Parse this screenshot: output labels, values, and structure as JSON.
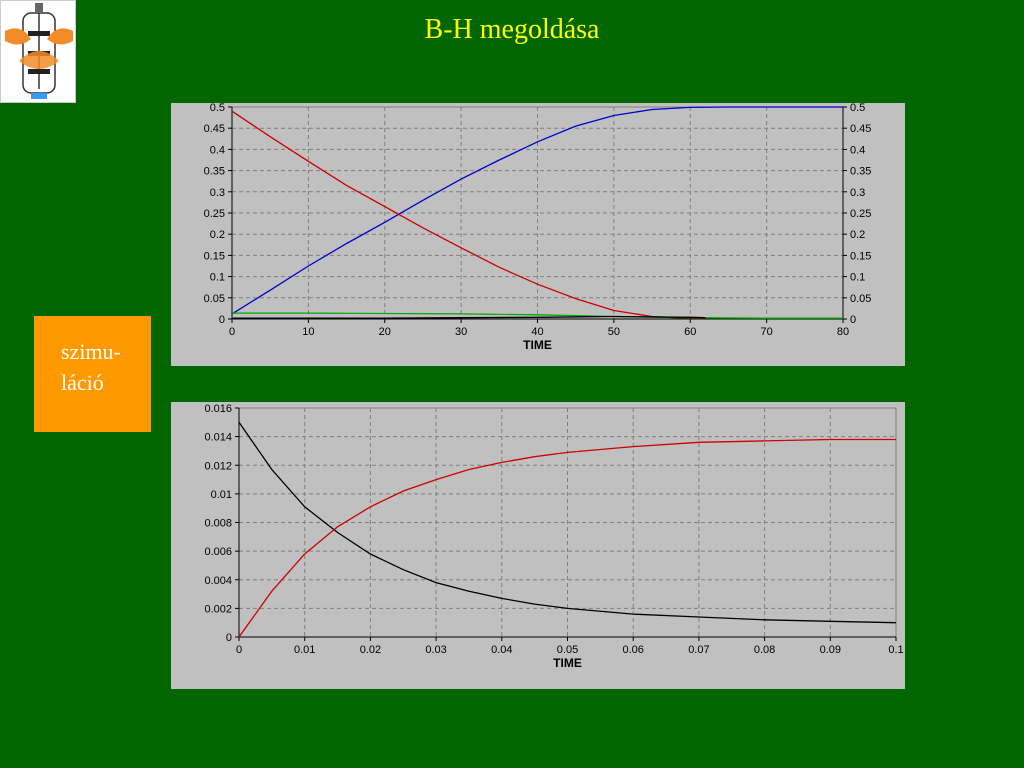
{
  "slide": {
    "title": "B-H megoldása",
    "side_box": {
      "line1": "szimu-",
      "line2": "láció"
    },
    "logo_icon": "bioreactor-icon"
  },
  "colors": {
    "background": "#006600",
    "title": "#ffff00",
    "side_box": "#ff9900",
    "chart_bg": "#c0c0c0"
  },
  "chart_data": [
    {
      "type": "line",
      "title": "",
      "xlabel": "TIME",
      "ylabel": "",
      "xlim": [
        0,
        80
      ],
      "ylim": [
        0,
        0.5
      ],
      "x_ticks": [
        "0",
        "10",
        "20",
        "30",
        "40",
        "50",
        "60",
        "70",
        "80"
      ],
      "y_ticks": [
        "0",
        "0.05",
        "0.1",
        "0.15",
        "0.2",
        "0.25",
        "0.3",
        "0.35",
        "0.4",
        "0.45",
        "0.5"
      ],
      "y_ticks_right": [
        "0",
        "0.05",
        "0.1",
        "0.15",
        "0.2",
        "0.25",
        "0.3",
        "0.35",
        "0.4",
        "0.45",
        "0.5"
      ],
      "grid": true,
      "series": [
        {
          "color": "#0000cc",
          "x": [
            0,
            5,
            10,
            15,
            20,
            25,
            30,
            35,
            40,
            45,
            50,
            55,
            60,
            65,
            70,
            75,
            80
          ],
          "y": [
            0.012,
            0.068,
            0.125,
            0.178,
            0.228,
            0.28,
            0.33,
            0.375,
            0.418,
            0.455,
            0.48,
            0.494,
            0.499,
            0.5,
            0.5,
            0.5,
            0.5
          ]
        },
        {
          "color": "#cc0000",
          "x": [
            0,
            5,
            10,
            15,
            20,
            25,
            30,
            35,
            40,
            45,
            50,
            55,
            58,
            62
          ],
          "y": [
            0.49,
            0.43,
            0.372,
            0.315,
            0.265,
            0.215,
            0.168,
            0.122,
            0.082,
            0.048,
            0.02,
            0.006,
            0.003,
            0.002
          ]
        },
        {
          "color": "#00aa00",
          "x": [
            0,
            10,
            20,
            30,
            40,
            50,
            60,
            70,
            80
          ],
          "y": [
            0.014,
            0.014,
            0.013,
            0.012,
            0.01,
            0.006,
            0.003,
            0.002,
            0.002
          ]
        },
        {
          "color": "#000000",
          "x": [
            0,
            10,
            20,
            30,
            40,
            50,
            60,
            62
          ],
          "y": [
            0.002,
            0.002,
            0.002,
            0.003,
            0.004,
            0.006,
            0.004,
            0.003
          ]
        }
      ]
    },
    {
      "type": "line",
      "title": "",
      "xlabel": "TIME",
      "ylabel": "",
      "xlim": [
        0,
        0.1
      ],
      "ylim": [
        0,
        0.016
      ],
      "x_ticks": [
        "0",
        "0.01",
        "0.02",
        "0.03",
        "0.04",
        "0.05",
        "0.06",
        "0.07",
        "0.08",
        "0.09",
        "0.1"
      ],
      "y_ticks": [
        "0",
        "0.002",
        "0.004",
        "0.006",
        "0.008",
        "0.01",
        "0.012",
        "0.014",
        "0.016"
      ],
      "grid": true,
      "series": [
        {
          "color": "#000000",
          "x": [
            0,
            0.005,
            0.01,
            0.015,
            0.02,
            0.025,
            0.03,
            0.035,
            0.04,
            0.045,
            0.05,
            0.06,
            0.07,
            0.08,
            0.09,
            0.1
          ],
          "y": [
            0.015,
            0.0117,
            0.0091,
            0.0073,
            0.0058,
            0.0047,
            0.0038,
            0.0032,
            0.0027,
            0.0023,
            0.002,
            0.0016,
            0.0014,
            0.0012,
            0.0011,
            0.001
          ]
        },
        {
          "color": "#cc0000",
          "x": [
            0,
            0.005,
            0.01,
            0.015,
            0.02,
            0.025,
            0.03,
            0.035,
            0.04,
            0.045,
            0.05,
            0.06,
            0.07,
            0.08,
            0.09,
            0.1
          ],
          "y": [
            0,
            0.0032,
            0.0058,
            0.0077,
            0.0091,
            0.0102,
            0.011,
            0.0117,
            0.0122,
            0.0126,
            0.0129,
            0.0133,
            0.0136,
            0.0137,
            0.0138,
            0.0138
          ]
        }
      ]
    }
  ]
}
